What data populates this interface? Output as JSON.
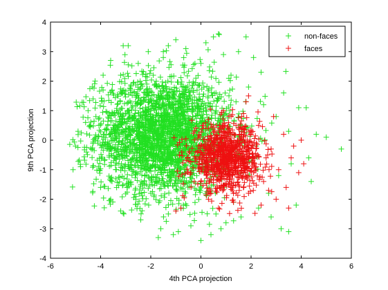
{
  "chart_data": {
    "type": "scatter",
    "title": "",
    "xlabel": "4th PCA projection",
    "ylabel": "9th PCA projection",
    "xlim": [
      -6,
      6
    ],
    "ylim": [
      -4,
      4
    ],
    "xticks": [
      -6,
      -4,
      -2,
      0,
      2,
      4,
      6
    ],
    "yticks": [
      -4,
      -3,
      -2,
      -1,
      0,
      1,
      2,
      3,
      4
    ],
    "marker": "+",
    "legend_position": "top-right",
    "series": [
      {
        "name": "non-faces",
        "color": "#22e022",
        "distribution": "dense Gaussian-like cloud centred near (-1.5, 0.2); x spans roughly -5.3 to 5.6, y spans roughly -3.4 to 3.6",
        "points": [
          [
            -2.5,
            0.4
          ],
          [
            -1.8,
            -0.2
          ],
          [
            -3.0,
            0.9
          ],
          [
            -1.0,
            1.2
          ],
          [
            -2.2,
            -1.0
          ],
          [
            -0.5,
            0.6
          ],
          [
            -3.6,
            -0.3
          ],
          [
            -1.4,
            1.8
          ],
          [
            -2.8,
            1.6
          ],
          [
            -0.2,
            2.1
          ],
          [
            -4.2,
            0.1
          ],
          [
            -4.8,
            -0.9
          ],
          [
            -5.1,
            -1.0
          ],
          [
            -4.5,
            1.0
          ],
          [
            -3.9,
            1.7
          ],
          [
            -3.2,
            2.2
          ],
          [
            -2.5,
            2.6
          ],
          [
            -1.5,
            2.8
          ],
          [
            -0.6,
            3.1
          ],
          [
            0.5,
            3.5
          ],
          [
            0.7,
            3.6
          ],
          [
            1.8,
            3.5
          ],
          [
            -2.9,
            3.2
          ],
          [
            -1.3,
            3.2
          ],
          [
            -4.0,
            -1.6
          ],
          [
            -3.6,
            -2.0
          ],
          [
            -3.2,
            -2.4
          ],
          [
            -2.4,
            -2.7
          ],
          [
            -1.6,
            -3.0
          ],
          [
            -0.9,
            -3.1
          ],
          [
            0.0,
            -3.4
          ],
          [
            0.4,
            -3.2
          ],
          [
            1.0,
            -2.8
          ],
          [
            1.6,
            -2.6
          ],
          [
            -1.7,
            -3.3
          ],
          [
            -2.0,
            -1.8
          ],
          [
            -1.2,
            -0.8
          ],
          [
            -0.4,
            -1.4
          ],
          [
            0.2,
            -0.9
          ],
          [
            0.6,
            1.6
          ],
          [
            1.2,
            2.2
          ],
          [
            1.9,
            1.8
          ],
          [
            2.5,
            1.2
          ],
          [
            3.0,
            0.8
          ],
          [
            3.5,
            0.3
          ],
          [
            4.0,
            0.0
          ],
          [
            4.3,
            -0.6
          ],
          [
            4.6,
            0.2
          ],
          [
            5.0,
            0.1
          ],
          [
            5.6,
            -0.3
          ],
          [
            4.4,
            -1.4
          ],
          [
            3.8,
            -2.2
          ],
          [
            3.2,
            -3.0
          ],
          [
            3.5,
            -3.1
          ],
          [
            2.8,
            -2.6
          ],
          [
            4.2,
            1.1
          ],
          [
            -4.6,
            0.6
          ],
          [
            -3.3,
            0.2
          ],
          [
            -2.0,
            0.8
          ],
          [
            -1.1,
            0.1
          ],
          [
            -0.3,
            -0.1
          ],
          [
            0.3,
            0.5
          ],
          [
            1.0,
            0.9
          ],
          [
            1.4,
            1.3
          ],
          [
            -2.7,
            -0.6
          ],
          [
            -1.6,
            -1.5
          ],
          [
            -3.9,
            2.2
          ],
          [
            -4.3,
            1.4
          ],
          [
            -1.5,
            3.0
          ],
          [
            2.1,
            2.8
          ],
          [
            0.0,
            2.6
          ],
          [
            -2.3,
            1.3
          ],
          [
            -0.8,
            1.9
          ],
          [
            0.9,
            2.9
          ],
          [
            -3.4,
            -1.0
          ],
          [
            -1.9,
            2.2
          ],
          [
            -0.7,
            -2.2
          ],
          [
            -1.3,
            -2.5
          ],
          [
            -2.6,
            -2.0
          ],
          [
            0.6,
            -2.5
          ],
          [
            1.3,
            -2.1
          ],
          [
            2.3,
            -2.3
          ],
          [
            2.7,
            -1.8
          ],
          [
            3.1,
            -1.2
          ],
          [
            3.6,
            -0.8
          ],
          [
            2.2,
            -0.2
          ],
          [
            -5.0,
            -0.2
          ],
          [
            -4.9,
            0.3
          ],
          [
            -2.1,
            3.0
          ],
          [
            -1.0,
            3.4
          ],
          [
            0.2,
            3.3
          ],
          [
            1.5,
            3.0
          ],
          [
            2.4,
            2.3
          ],
          [
            3.3,
            1.6
          ],
          [
            3.9,
            1.1
          ],
          [
            -3.6,
            2.7
          ],
          [
            -3.1,
            3.2
          ],
          [
            -0.4,
            -2.9
          ],
          [
            -1.1,
            -3.2
          ],
          [
            0.8,
            -3.0
          ]
        ]
      },
      {
        "name": "faces",
        "color": "#ee1111",
        "distribution": "compact cluster centred near (1.0, -0.6); x spans roughly -1.1 to 4.2, y spans roughly -2.5 to 1.5",
        "points": [
          [
            0.8,
            -0.5
          ],
          [
            1.2,
            -0.2
          ],
          [
            0.5,
            -1.0
          ],
          [
            1.5,
            -0.8
          ],
          [
            0.9,
            0.3
          ],
          [
            0.2,
            -0.6
          ],
          [
            1.8,
            -0.4
          ],
          [
            1.1,
            -1.5
          ],
          [
            0.4,
            -1.8
          ],
          [
            1.6,
            -1.2
          ],
          [
            2.2,
            -0.9
          ],
          [
            2.5,
            -1.4
          ],
          [
            2.8,
            -0.3
          ],
          [
            3.1,
            -1.0
          ],
          [
            3.4,
            -1.6
          ],
          [
            3.6,
            -0.6
          ],
          [
            3.9,
            -1.1
          ],
          [
            4.1,
            -0.8
          ],
          [
            3.3,
            0.2
          ],
          [
            2.9,
            0.8
          ],
          [
            1.8,
            1.3
          ],
          [
            1.9,
            1.5
          ],
          [
            0.9,
            1.0
          ],
          [
            0.1,
            0.5
          ],
          [
            -0.1,
            -0.2
          ],
          [
            0.0,
            -1.4
          ],
          [
            0.3,
            -2.0
          ],
          [
            0.7,
            -2.3
          ],
          [
            1.3,
            -2.1
          ],
          [
            1.9,
            -1.8
          ],
          [
            2.4,
            -2.2
          ],
          [
            3.0,
            -2.0
          ],
          [
            -0.8,
            -2.3
          ],
          [
            -1.0,
            -2.4
          ],
          [
            -0.4,
            -1.1
          ],
          [
            0.6,
            0.0
          ],
          [
            1.4,
            0.5
          ],
          [
            2.0,
            0.2
          ],
          [
            2.6,
            -0.6
          ],
          [
            3.7,
            -0.2
          ],
          [
            4.0,
            0.0
          ],
          [
            0.3,
            0.7
          ],
          [
            1.0,
            -0.9
          ],
          [
            2.1,
            -1.1
          ],
          [
            1.7,
            0.9
          ],
          [
            0.0,
            -0.4
          ],
          [
            1.1,
            0.6
          ],
          [
            2.3,
            0.5
          ],
          [
            3.5,
            -2.3
          ],
          [
            2.7,
            -1.7
          ]
        ]
      }
    ]
  }
}
